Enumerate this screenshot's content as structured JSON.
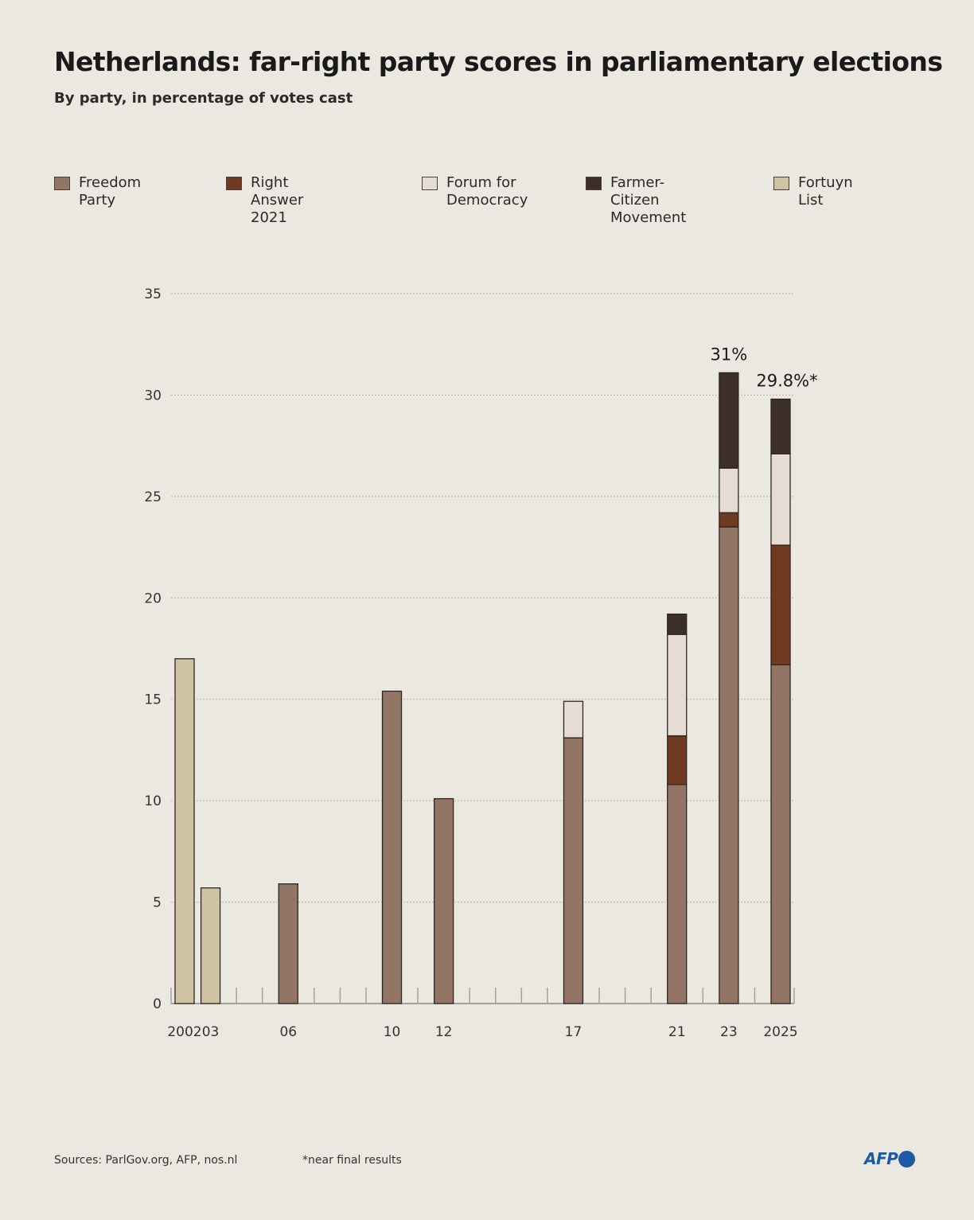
{
  "title": "Netherlands: far-right party scores in parliamentary elections",
  "subtitle": "By party, in percentage of votes cast",
  "legend": [
    {
      "label": "Freedom Party",
      "color": "#927565"
    },
    {
      "label": "Right Answer 2021",
      "color": "#6e3b22"
    },
    {
      "label": "Forum for\nDemocracy",
      "color": "#e6dcd3"
    },
    {
      "label": "Farmer-Citizen\nMovement",
      "color": "#3b2f28"
    },
    {
      "label": "Fortuyn List",
      "color": "#cfc3a3"
    }
  ],
  "footer": {
    "sources": "Sources: ParlGov.org, AFP, nos.nl",
    "note": "*near final results",
    "logo": "AFP"
  },
  "chart_data": {
    "type": "bar",
    "stacked": true,
    "ylim": [
      0,
      35
    ],
    "yticks": [
      0,
      5,
      10,
      15,
      20,
      25,
      30,
      35
    ],
    "grid": true,
    "legend_position": "top",
    "x_domain": [
      2002,
      2025
    ],
    "categories": [
      {
        "year": 2002,
        "label": "2002"
      },
      {
        "year": 2003,
        "label": "03"
      },
      {
        "year": 2006,
        "label": "06"
      },
      {
        "year": 2010,
        "label": "10"
      },
      {
        "year": 2012,
        "label": "12"
      },
      {
        "year": 2017,
        "label": "17"
      },
      {
        "year": 2021,
        "label": "21"
      },
      {
        "year": 2023,
        "label": "23"
      },
      {
        "year": 2025,
        "label": "2025"
      }
    ],
    "series": [
      {
        "name": "Freedom Party",
        "color": "#927565",
        "values": [
          0,
          0,
          5.9,
          15.4,
          10.1,
          13.1,
          10.8,
          23.5,
          16.7
        ]
      },
      {
        "name": "Right Answer 2021",
        "color": "#6e3b22",
        "values": [
          0,
          0,
          0,
          0,
          0,
          0,
          2.4,
          0.7,
          5.9
        ]
      },
      {
        "name": "Forum for Democracy",
        "color": "#e6dcd3",
        "values": [
          0,
          0,
          0,
          0,
          0,
          1.8,
          5.0,
          2.2,
          4.5
        ]
      },
      {
        "name": "Farmer-Citizen Movement",
        "color": "#3b2f28",
        "values": [
          0,
          0,
          0,
          0,
          0,
          0,
          1.0,
          4.7,
          2.7
        ]
      },
      {
        "name": "Fortuyn List",
        "color": "#cfc3a3",
        "values": [
          17.0,
          5.7,
          0,
          0,
          0,
          0,
          0,
          0,
          0
        ]
      }
    ],
    "annotations": [
      {
        "year": 2023,
        "text": "31%"
      },
      {
        "year": 2025,
        "text": "29.8%*"
      }
    ]
  }
}
